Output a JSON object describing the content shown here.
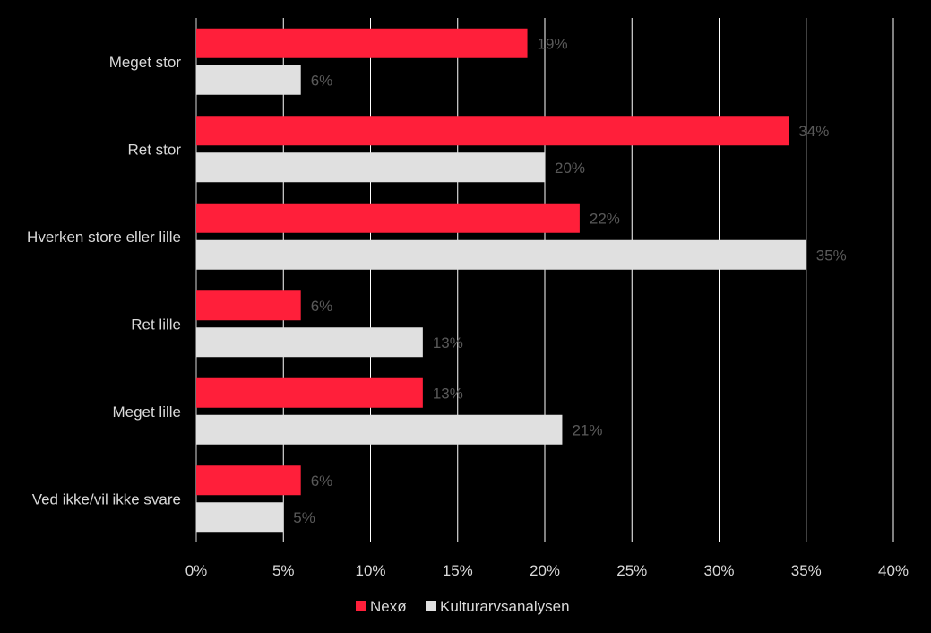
{
  "chart_data": {
    "type": "bar",
    "orientation": "horizontal",
    "title": "",
    "xlabel": "",
    "ylabel": "",
    "categories": [
      "Meget stor",
      "Ret stor",
      "Hverken store eller lille",
      "Ret lille",
      "Meget lille",
      "Ved ikke/vil ikke svare"
    ],
    "series": [
      {
        "name": "Nexø",
        "color": "#ff1f3a",
        "values": [
          19,
          34,
          22,
          6,
          13,
          6
        ],
        "labels": [
          "19%",
          "34%",
          "22%",
          "6%",
          "13%",
          "6%"
        ]
      },
      {
        "name": "Kulturarvsanalysen",
        "color": "#e0e0e0",
        "values": [
          6,
          20,
          35,
          13,
          21,
          5
        ],
        "labels": [
          "6%",
          "20%",
          "35%",
          "13%",
          "21%",
          "5%"
        ]
      }
    ],
    "xlim": [
      0,
      40
    ],
    "xticks": [
      0,
      5,
      10,
      15,
      20,
      25,
      30,
      35,
      40
    ],
    "xtick_labels": [
      "0%",
      "5%",
      "10%",
      "15%",
      "20%",
      "25%",
      "30%",
      "35%",
      "40%"
    ],
    "grid": true,
    "legend_position": "bottom"
  }
}
